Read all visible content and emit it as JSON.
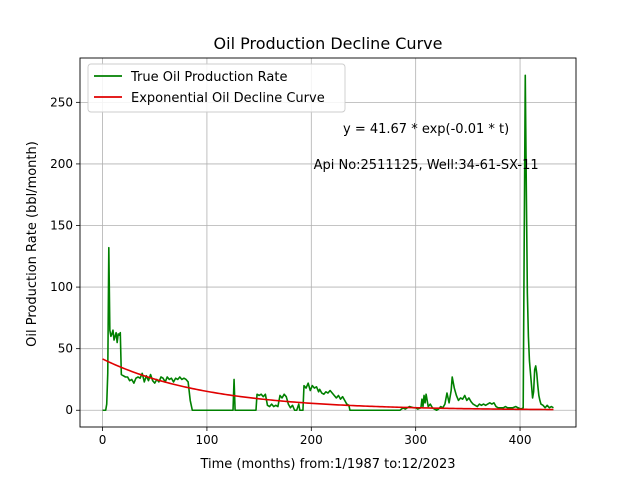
{
  "chart_data": {
    "type": "line",
    "title": "Oil Production Decline Curve",
    "xlabel": "Time (months) from:1/1987 to:12/2023",
    "ylabel": "Oil Production Rate (bbl/month)",
    "xlim": [
      -21.6,
      453.6
    ],
    "ylim": [
      -13.6,
      286
    ],
    "xticks": [
      0,
      100,
      200,
      300,
      400
    ],
    "yticks": [
      0,
      50,
      100,
      150,
      200,
      250
    ],
    "grid": true,
    "legend_position": "top-left",
    "annotations": [
      {
        "text": "y = 41.67 * exp(-0.01 * t)",
        "x": 310,
        "y": 225
      },
      {
        "text": "Api No:2511125, Well:34-61-SX-11",
        "x": 310,
        "y": 196
      }
    ],
    "series": [
      {
        "name": "True Oil Production Rate",
        "color": "#008000",
        "points": [
          [
            0,
            0
          ],
          [
            3,
            0
          ],
          [
            4,
            5
          ],
          [
            5,
            30
          ],
          [
            6,
            132
          ],
          [
            7,
            65
          ],
          [
            8,
            60
          ],
          [
            9,
            62
          ],
          [
            10,
            65
          ],
          [
            11,
            57
          ],
          [
            12,
            60
          ],
          [
            13,
            63
          ],
          [
            14,
            55
          ],
          [
            15,
            62
          ],
          [
            16,
            61
          ],
          [
            17,
            63
          ],
          [
            18,
            29
          ],
          [
            20,
            28
          ],
          [
            22,
            27
          ],
          [
            24,
            27
          ],
          [
            26,
            24
          ],
          [
            28,
            25
          ],
          [
            30,
            22
          ],
          [
            32,
            26
          ],
          [
            34,
            27
          ],
          [
            36,
            26
          ],
          [
            38,
            30
          ],
          [
            40,
            23
          ],
          [
            42,
            28
          ],
          [
            44,
            24
          ],
          [
            46,
            29
          ],
          [
            48,
            24
          ],
          [
            50,
            22
          ],
          [
            52,
            25
          ],
          [
            54,
            23
          ],
          [
            56,
            27
          ],
          [
            58,
            26
          ],
          [
            60,
            23
          ],
          [
            62,
            27
          ],
          [
            64,
            25
          ],
          [
            66,
            26
          ],
          [
            68,
            23
          ],
          [
            70,
            26
          ],
          [
            72,
            25
          ],
          [
            74,
            27
          ],
          [
            76,
            25
          ],
          [
            78,
            26
          ],
          [
            80,
            25
          ],
          [
            82,
            23
          ],
          [
            84,
            8
          ],
          [
            86,
            0
          ],
          [
            100,
            0
          ],
          [
            120,
            0
          ],
          [
            125,
            0
          ],
          [
            126,
            25
          ],
          [
            127,
            0
          ],
          [
            140,
            0
          ],
          [
            147,
            0
          ],
          [
            148,
            13
          ],
          [
            150,
            12
          ],
          [
            152,
            13
          ],
          [
            154,
            11
          ],
          [
            156,
            13
          ],
          [
            158,
            4
          ],
          [
            160,
            3
          ],
          [
            162,
            5
          ],
          [
            164,
            3
          ],
          [
            166,
            4
          ],
          [
            168,
            3
          ],
          [
            170,
            12
          ],
          [
            172,
            10
          ],
          [
            174,
            13
          ],
          [
            176,
            11
          ],
          [
            178,
            5
          ],
          [
            180,
            2
          ],
          [
            182,
            4
          ],
          [
            184,
            0
          ],
          [
            186,
            0
          ],
          [
            188,
            5
          ],
          [
            189,
            0
          ],
          [
            192,
            0
          ],
          [
            193,
            20
          ],
          [
            195,
            18
          ],
          [
            197,
            22
          ],
          [
            199,
            16
          ],
          [
            201,
            20
          ],
          [
            203,
            18
          ],
          [
            205,
            19
          ],
          [
            207,
            15
          ],
          [
            208,
            17
          ],
          [
            210,
            14
          ],
          [
            212,
            13
          ],
          [
            214,
            15
          ],
          [
            216,
            14
          ],
          [
            218,
            16
          ],
          [
            220,
            14
          ],
          [
            222,
            12
          ],
          [
            224,
            10
          ],
          [
            226,
            12
          ],
          [
            228,
            9
          ],
          [
            230,
            11
          ],
          [
            232,
            8
          ],
          [
            234,
            5
          ],
          [
            236,
            4
          ],
          [
            237,
            0
          ],
          [
            240,
            0
          ],
          [
            260,
            0
          ],
          [
            280,
            0
          ],
          [
            285,
            0
          ],
          [
            288,
            2
          ],
          [
            290,
            1
          ],
          [
            294,
            3
          ],
          [
            298,
            2
          ],
          [
            300,
            2
          ],
          [
            302,
            1
          ],
          [
            305,
            2
          ],
          [
            306,
            9
          ],
          [
            307,
            3
          ],
          [
            308,
            12
          ],
          [
            309,
            6
          ],
          [
            310,
            13
          ],
          [
            312,
            3
          ],
          [
            314,
            5
          ],
          [
            316,
            2
          ],
          [
            318,
            1
          ],
          [
            320,
            0
          ],
          [
            322,
            1
          ],
          [
            324,
            3
          ],
          [
            326,
            2
          ],
          [
            328,
            5
          ],
          [
            330,
            14
          ],
          [
            332,
            6
          ],
          [
            334,
            16
          ],
          [
            335,
            27
          ],
          [
            337,
            18
          ],
          [
            339,
            12
          ],
          [
            341,
            8
          ],
          [
            343,
            10
          ],
          [
            345,
            9
          ],
          [
            347,
            12
          ],
          [
            349,
            8
          ],
          [
            351,
            10
          ],
          [
            353,
            7
          ],
          [
            355,
            5
          ],
          [
            357,
            4
          ],
          [
            359,
            3
          ],
          [
            361,
            5
          ],
          [
            363,
            4
          ],
          [
            365,
            5
          ],
          [
            367,
            4
          ],
          [
            369,
            5
          ],
          [
            371,
            6
          ],
          [
            373,
            5
          ],
          [
            375,
            6
          ],
          [
            377,
            3
          ],
          [
            379,
            2
          ],
          [
            381,
            2
          ],
          [
            384,
            2
          ],
          [
            386,
            3
          ],
          [
            388,
            2
          ],
          [
            391,
            2
          ],
          [
            393,
            2
          ],
          [
            396,
            3
          ],
          [
            398,
            2
          ],
          [
            401,
            1
          ],
          [
            403,
            2
          ],
          [
            404,
            140
          ],
          [
            405,
            272
          ],
          [
            406,
            180
          ],
          [
            407,
            95
          ],
          [
            408,
            60
          ],
          [
            409,
            40
          ],
          [
            410,
            30
          ],
          [
            411,
            20
          ],
          [
            412,
            10
          ],
          [
            413,
            15
          ],
          [
            414,
            33
          ],
          [
            415,
            36
          ],
          [
            416,
            30
          ],
          [
            417,
            20
          ],
          [
            418,
            12
          ],
          [
            419,
            8
          ],
          [
            420,
            5
          ],
          [
            422,
            4
          ],
          [
            424,
            2
          ],
          [
            426,
            4
          ],
          [
            428,
            2
          ],
          [
            430,
            3
          ],
          [
            432,
            2
          ]
        ]
      },
      {
        "name": "Exponential Oil Decline Curve",
        "color": "#e00000",
        "model": {
          "a": 41.67,
          "b": 0.01,
          "t_start": 0,
          "t_end": 432
        }
      }
    ]
  }
}
